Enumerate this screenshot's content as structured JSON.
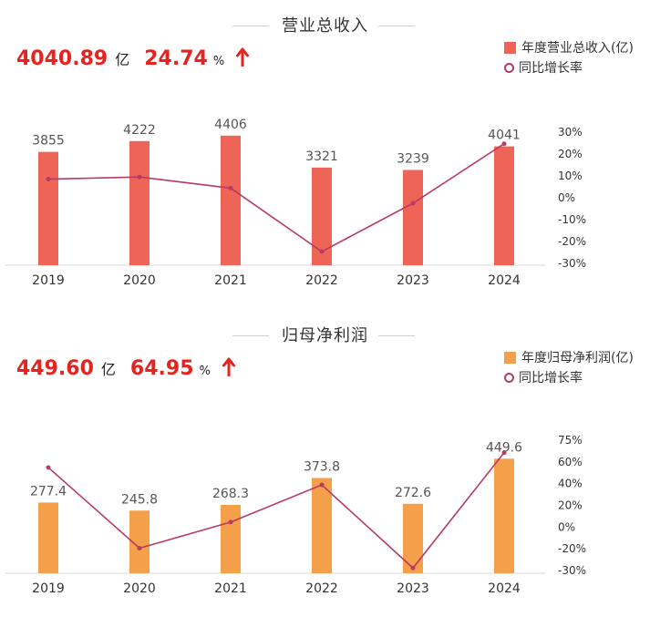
{
  "chart_data": [
    {
      "type": "bar",
      "title": "营业总收入",
      "categories": [
        "2019",
        "2020",
        "2021",
        "2022",
        "2023",
        "2024"
      ],
      "series": [
        {
          "name": "年度营业总收入(亿)",
          "type": "bar",
          "axis": "left",
          "color": "#ee6457",
          "values": [
            3855,
            4222,
            4406,
            3321,
            3239,
            4041
          ]
        },
        {
          "name": "同比增长率",
          "type": "line",
          "axis": "right",
          "color": "#b83b61",
          "values": [
            8.5,
            9.5,
            4.4,
            -24.6,
            -2.5,
            24.7
          ]
        }
      ],
      "y_left_range": [
        0,
        5300
      ],
      "y_right_ticks": [
        "30%",
        "20%",
        "10%",
        "0%",
        "-10%",
        "-20%",
        "-30%"
      ],
      "y_right_range": [
        -30,
        30
      ],
      "legend_position": "top-right",
      "headline": {
        "value": "4040.89",
        "value_unit": "亿",
        "growth": "24.74",
        "growth_unit": "%"
      }
    },
    {
      "type": "bar",
      "title": "归母净利润",
      "categories": [
        "2019",
        "2020",
        "2021",
        "2022",
        "2023",
        "2024"
      ],
      "series": [
        {
          "name": "年度归母净利润(亿)",
          "type": "bar",
          "axis": "left",
          "color": "#f4a04a",
          "values": [
            277.4,
            245.8,
            268.3,
            373.8,
            272.6,
            449.6
          ]
        },
        {
          "name": "同比增长率",
          "type": "line",
          "axis": "right",
          "color": "#b83b61",
          "values": [
            53,
            -12,
            9,
            39,
            -28,
            65
          ]
        }
      ],
      "y_left_range": [
        0,
        590
      ],
      "y_right_ticks": [
        "75%",
        "60%",
        "40%",
        "20%",
        "0%",
        "-20%",
        "-30%"
      ],
      "y_right_range": [
        -30,
        75
      ],
      "legend_position": "top-right",
      "headline": {
        "value": "449.60",
        "value_unit": "亿",
        "growth": "64.95",
        "growth_unit": "%"
      }
    }
  ]
}
